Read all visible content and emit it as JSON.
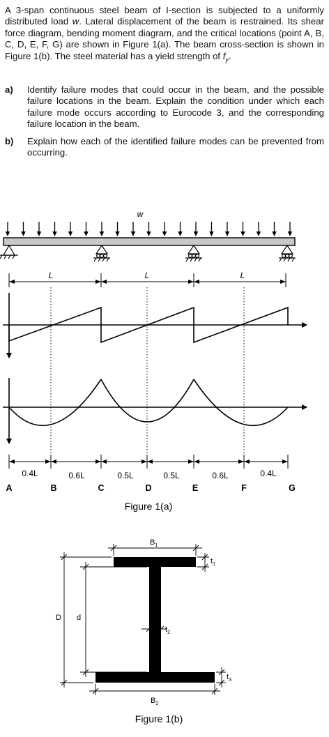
{
  "intro": {
    "p1": "A 3-span continuous steel beam of I-section is subjected to a uniformly distributed load ",
    "w": "w",
    "p2": ". Lateral displacement of the beam is restrained. Its shear force diagram, bending moment diagram, and the critical locations (point A, B, C, D, E, F, G) are shown in Figure 1(a). The beam cross-section is shown in Figure 1(b). The steel material has a yield strength of ",
    "fy_f": "f",
    "fy_y": "y",
    "p3": "."
  },
  "questions": [
    {
      "label": "a)",
      "text": "Identify failure modes that could occur in the beam, and the possible failure locations in the beam. Explain the condition under which each failure mode occurs according to Eurocode 3, and the corresponding failure location in the beam."
    },
    {
      "label": "b)",
      "text": "Explain how each of the identified failure modes can be prevented from occurring."
    }
  ],
  "figure_a": {
    "load_label": "w",
    "span_labels": [
      "L",
      "L",
      "L"
    ],
    "segment_labels": [
      "0.4L",
      "0.6L",
      "0.5L",
      "0.5L",
      "0.6L",
      "0.4L"
    ],
    "points": [
      "A",
      "B",
      "C",
      "D",
      "E",
      "F",
      "G"
    ],
    "caption": "Figure 1(a)"
  },
  "figure_b": {
    "labels": {
      "B1": "B",
      "B1_sub": "1",
      "B2": "B",
      "B2_sub": "2",
      "t1": "t",
      "t1_sub": "1",
      "t2": "t",
      "t2_sub": "2",
      "t3": "t",
      "t3_sub": "3",
      "D": "D",
      "d": "d"
    },
    "caption": "Figure 1(b)"
  }
}
